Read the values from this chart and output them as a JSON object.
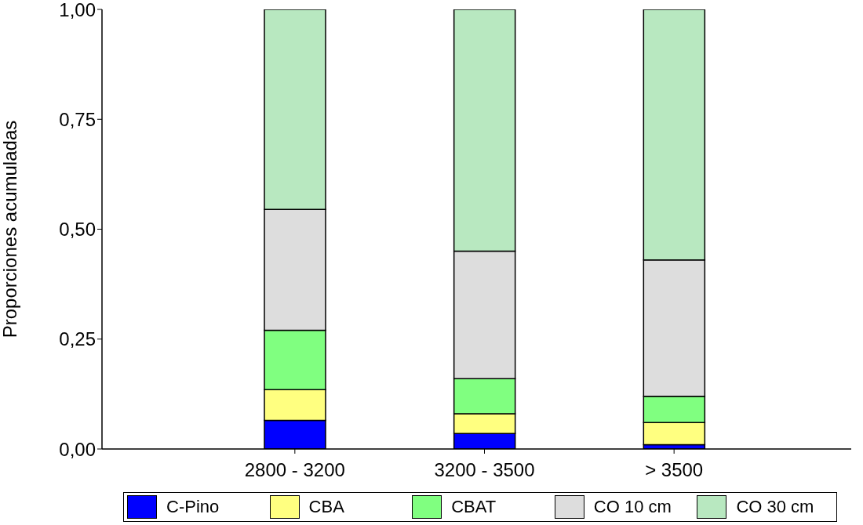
{
  "chart_data": {
    "type": "bar",
    "stacked": true,
    "ylabel": "Proporciones acumuladas",
    "categories": [
      "2800 - 3200",
      "3200 - 3500",
      "> 3500"
    ],
    "series": [
      {
        "name": "C-Pino",
        "color": "#0000ff",
        "values": [
          0.065,
          0.035,
          0.01
        ]
      },
      {
        "name": "CBA",
        "color": "#ffff80",
        "values": [
          0.07,
          0.045,
          0.05
        ]
      },
      {
        "name": "CBAT",
        "color": "#80ff80",
        "values": [
          0.135,
          0.08,
          0.06
        ]
      },
      {
        "name": "CO 10 cm",
        "color": "#dddddd",
        "values": [
          0.275,
          0.29,
          0.31
        ]
      },
      {
        "name": "CO 30 cm",
        "color": "#b8e8c0",
        "values": [
          0.455,
          0.55,
          0.57
        ]
      }
    ],
    "ylim": [
      0,
      1
    ],
    "yticks": [
      {
        "value": 0,
        "label": "0,00"
      },
      {
        "value": 0.25,
        "label": "0,25"
      },
      {
        "value": 0.5,
        "label": "0,50"
      },
      {
        "value": 0.75,
        "label": "0,75"
      },
      {
        "value": 1,
        "label": "1,00"
      }
    ],
    "grid": false,
    "legend": "bottom"
  }
}
